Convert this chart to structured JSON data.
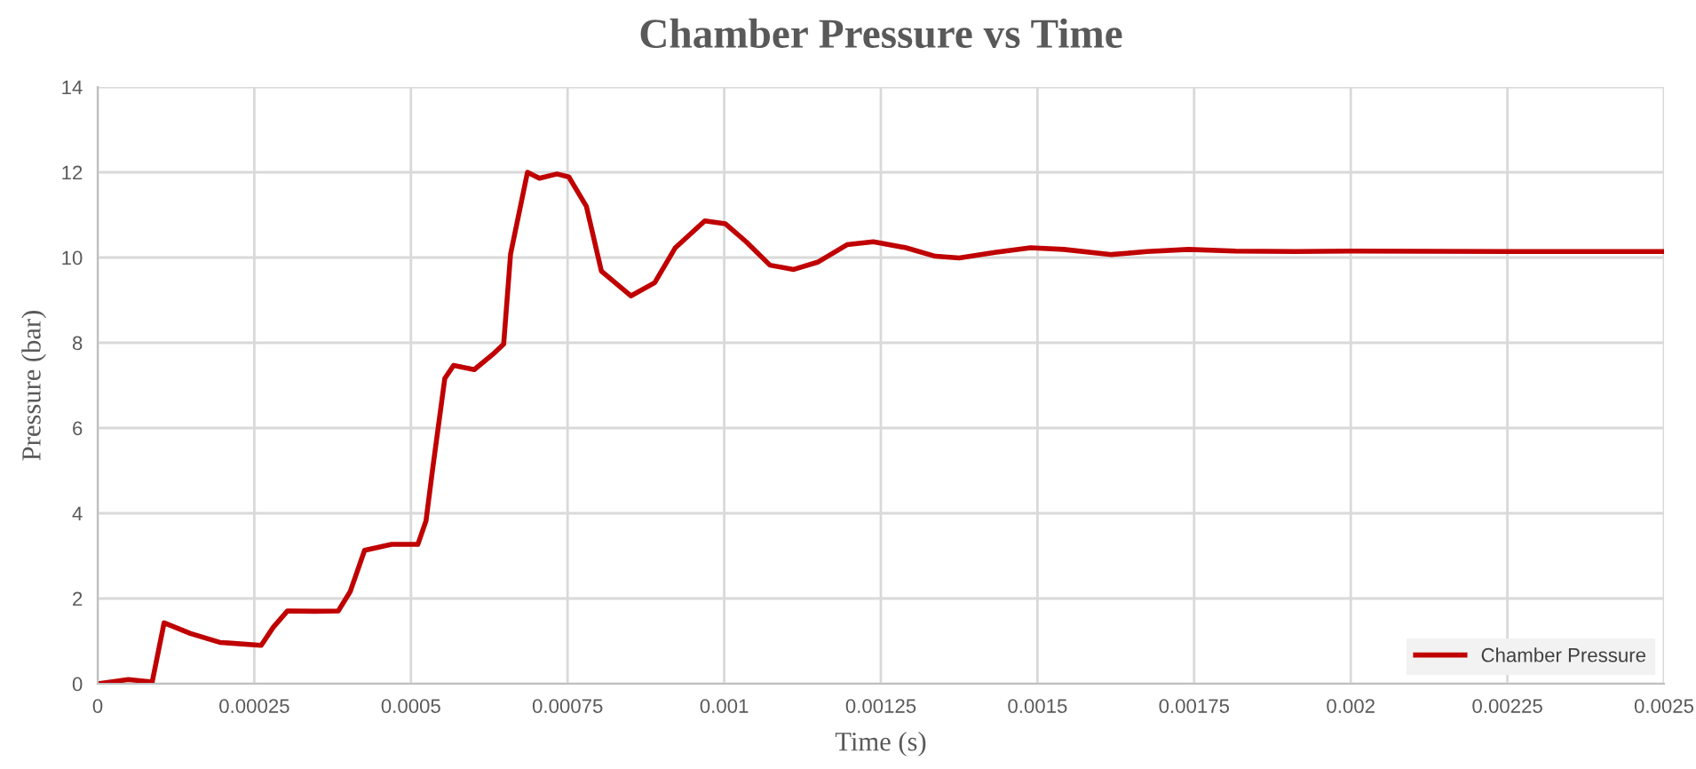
{
  "chart_data": {
    "type": "line",
    "title": "Chamber Pressure vs Time",
    "xlabel": "Time (s)",
    "ylabel": "Pressure (bar)",
    "xlim": [
      0,
      0.0025
    ],
    "xticks": [
      0,
      0.00025,
      0.0005,
      0.00075,
      0.001,
      0.00125,
      0.0015,
      0.00175,
      0.002,
      0.00225,
      0.0025
    ],
    "ylim": [
      0,
      14
    ],
    "yticks": [
      0,
      2,
      4,
      6,
      8,
      10,
      12,
      14
    ],
    "grid": true,
    "legend": "bottom right",
    "marker": "none",
    "line_style": "solid",
    "series": [
      {
        "name": "Chamber Pressure",
        "color": "#c00000",
        "x": [
          0,
          4.9e-05,
          8.7e-05,
          0.000106,
          0.000148,
          0.000195,
          0.000261,
          0.00028,
          0.000303,
          0.000346,
          0.000384,
          0.000403,
          0.000426,
          0.000469,
          0.000511,
          0.000524,
          0.000535,
          0.000554,
          0.000568,
          0.000601,
          0.00063,
          0.000648,
          0.000659,
          0.000686,
          0.000705,
          0.000733,
          0.000752,
          0.00078,
          0.000804,
          0.000851,
          0.000889,
          0.000922,
          0.000969,
          0.001002,
          0.001035,
          0.001073,
          0.001111,
          0.001149,
          0.001196,
          0.001238,
          0.00129,
          0.001337,
          0.001375,
          0.001432,
          0.001489,
          0.001542,
          0.001618,
          0.001675,
          0.001741,
          0.001816,
          0.001911,
          0.002,
          0.00225,
          0.0025
        ],
        "values": [
          0,
          0.1,
          0.04,
          1.43,
          1.18,
          0.97,
          0.9,
          1.32,
          1.71,
          1.7,
          1.71,
          2.16,
          3.13,
          3.27,
          3.27,
          3.82,
          5.08,
          7.16,
          7.47,
          7.37,
          7.72,
          7.97,
          10.08,
          12.0,
          11.86,
          11.96,
          11.89,
          11.2,
          9.68,
          9.1,
          9.41,
          10.23,
          10.86,
          10.79,
          10.37,
          9.82,
          9.72,
          9.89,
          10.3,
          10.37,
          10.23,
          10.03,
          9.99,
          10.12,
          10.23,
          10.19,
          10.07,
          10.14,
          10.19,
          10.15,
          10.14,
          10.15,
          10.14,
          10.14
        ]
      }
    ]
  }
}
